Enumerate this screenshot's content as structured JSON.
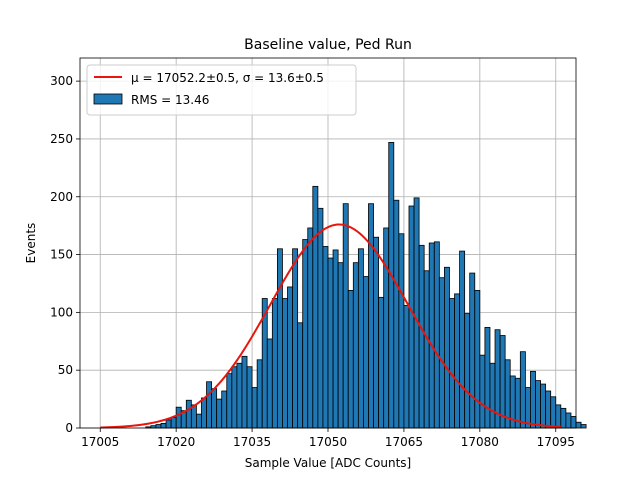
{
  "chart_data": {
    "type": "bar",
    "title": "Baseline value, Ped Run",
    "xlabel": "Sample Value [ADC Counts]",
    "ylabel": "Events",
    "xlim": [
      17001,
      17099
    ],
    "ylim": [
      0,
      320
    ],
    "xticks": [
      17005,
      17020,
      17035,
      17050,
      17065,
      17080,
      17095
    ],
    "yticks": [
      0,
      50,
      100,
      150,
      200,
      250,
      300
    ],
    "grid": true,
    "legend_placement": "top-left",
    "bin_start": 17014,
    "bin_width": 1,
    "counts": [
      1,
      2,
      3,
      4,
      7,
      9,
      18,
      15,
      24,
      20,
      12,
      26,
      40,
      34,
      25,
      32,
      47,
      53,
      56,
      62,
      53,
      35,
      59,
      112,
      77,
      112,
      155,
      112,
      122,
      155,
      91,
      163,
      173,
      209,
      190,
      157,
      147,
      154,
      143,
      194,
      119,
      143,
      155,
      131,
      194,
      165,
      113,
      173,
      247,
      197,
      168,
      106,
      192,
      199,
      158,
      136,
      160,
      161,
      130,
      139,
      112,
      116,
      153,
      99,
      134,
      119,
      63,
      87,
      56,
      85,
      80,
      59,
      45,
      43,
      66,
      35,
      49,
      41,
      38,
      32,
      27,
      20,
      17,
      13,
      10,
      5,
      3
    ],
    "fit": {
      "name": "μ = 17052.2±0.5, σ = 13.6±0.5",
      "mu": 17052.2,
      "sigma": 13.6,
      "amplitude": 176,
      "color": "#e8160c"
    },
    "series": [
      {
        "name": "RMS = 13.46",
        "color": "#1f77b4"
      }
    ]
  }
}
